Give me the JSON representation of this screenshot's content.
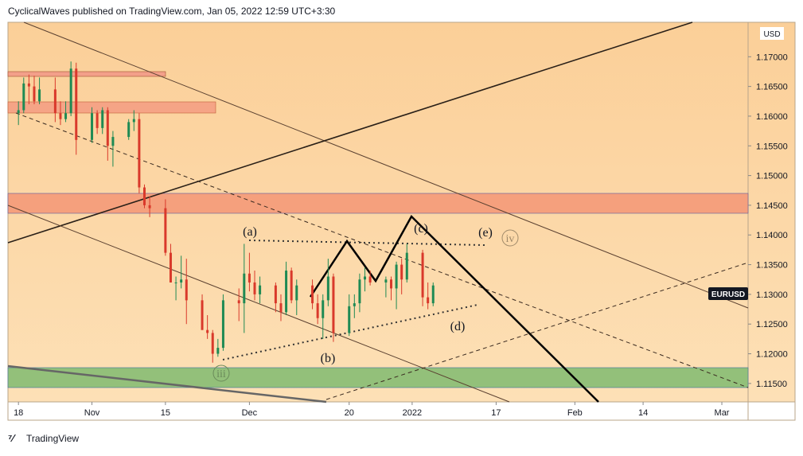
{
  "header": {
    "text": "CyclicalWaves published on TradingView.com, Jan 05, 2022 12:59 UTC+3:30"
  },
  "footer": {
    "brand": "TradingView"
  },
  "chart_data": {
    "type": "candlestick",
    "currency": "USD",
    "symbol": "EURUSD",
    "up_color": "#1e8a54",
    "down_color": "#d9392b",
    "xlim": [
      "2021-10-16",
      "2022-03-06"
    ],
    "ylim": [
      1.1119,
      1.1758
    ],
    "xticks": [
      {
        "value": "2021-10-18",
        "label": "18"
      },
      {
        "value": "2021-11-01",
        "label": "Nov"
      },
      {
        "value": "2021-11-15",
        "label": "15"
      },
      {
        "value": "2021-12-01",
        "label": "Dec"
      },
      {
        "value": "2021-12-20",
        "label": "20"
      },
      {
        "value": "2022-01-01",
        "label": "2022"
      },
      {
        "value": "2022-01-17",
        "label": "17"
      },
      {
        "value": "2022-02-01",
        "label": "Feb"
      },
      {
        "value": "2022-02-14",
        "label": "14"
      },
      {
        "value": "2022-03-01",
        "label": "Mar"
      }
    ],
    "yticks": [
      {
        "value": 1.115,
        "label": "1.11500"
      },
      {
        "value": 1.12,
        "label": "1.12000"
      },
      {
        "value": 1.125,
        "label": "1.12500"
      },
      {
        "value": 1.13,
        "label": "1.13000"
      },
      {
        "value": 1.135,
        "label": "1.13500"
      },
      {
        "value": 1.14,
        "label": "1.14000"
      },
      {
        "value": 1.145,
        "label": "1.14500"
      },
      {
        "value": 1.15,
        "label": "1.15000"
      },
      {
        "value": 1.155,
        "label": "1.15500"
      },
      {
        "value": 1.16,
        "label": "1.16000"
      },
      {
        "value": 1.165,
        "label": "1.16500"
      },
      {
        "value": 1.17,
        "label": "1.17000"
      }
    ],
    "x": [
      "2021-10-18",
      "2021-10-19",
      "2021-10-20",
      "2021-10-21",
      "2021-10-22",
      "2021-10-25",
      "2021-10-26",
      "2021-10-27",
      "2021-10-28",
      "2021-10-29",
      "2021-11-01",
      "2021-11-02",
      "2021-11-03",
      "2021-11-04",
      "2021-11-05",
      "2021-11-08",
      "2021-11-09",
      "2021-11-10",
      "2021-11-11",
      "2021-11-12",
      "2021-11-15",
      "2021-11-16",
      "2021-11-17",
      "2021-11-18",
      "2021-11-19",
      "2021-11-22",
      "2021-11-23",
      "2021-11-24",
      "2021-11-25",
      "2021-11-26",
      "2021-11-29",
      "2021-11-30",
      "2021-12-01",
      "2021-12-02",
      "2021-12-03",
      "2021-12-06",
      "2021-12-07",
      "2021-12-08",
      "2021-12-09",
      "2021-12-10",
      "2021-12-13",
      "2021-12-14",
      "2021-12-15",
      "2021-12-16",
      "2021-12-17",
      "2021-12-20",
      "2021-12-21",
      "2021-12-22",
      "2021-12-23",
      "2021-12-24",
      "2021-12-27",
      "2021-12-28",
      "2021-12-29",
      "2021-12-30",
      "2021-12-31",
      "2022-01-03",
      "2022-01-04",
      "2022-01-05"
    ],
    "open": [
      1.1605,
      1.161,
      1.1655,
      1.165,
      1.1625,
      1.1645,
      1.1605,
      1.1595,
      1.1605,
      1.168,
      1.156,
      1.1605,
      1.158,
      1.161,
      1.155,
      1.1565,
      1.159,
      1.1595,
      1.148,
      1.145,
      1.1445,
      1.137,
      1.132,
      1.132,
      1.1325,
      1.129,
      1.124,
      1.1235,
      1.12,
      1.121,
      1.129,
      1.1285,
      1.1335,
      1.132,
      1.13,
      1.1315,
      1.1285,
      1.127,
      1.134,
      1.129,
      1.1315,
      1.1285,
      1.126,
      1.129,
      1.133,
      1.1235,
      1.128,
      1.1285,
      1.1325,
      1.133,
      1.132,
      1.1325,
      1.131,
      1.135,
      1.1325,
      1.137,
      1.1295,
      1.1285
    ],
    "high": [
      1.1625,
      1.1665,
      1.167,
      1.1668,
      1.1665,
      1.1665,
      1.1625,
      1.1625,
      1.1692,
      1.169,
      1.1615,
      1.161,
      1.1615,
      1.1615,
      1.1575,
      1.1595,
      1.161,
      1.1605,
      1.1485,
      1.1465,
      1.146,
      1.1385,
      1.133,
      1.1365,
      1.136,
      1.13,
      1.1265,
      1.124,
      1.1225,
      1.13,
      1.131,
      1.1385,
      1.137,
      1.134,
      1.133,
      1.132,
      1.13,
      1.1355,
      1.1345,
      1.1325,
      1.1325,
      1.13,
      1.13,
      1.136,
      1.1335,
      1.13,
      1.13,
      1.1335,
      1.1345,
      1.134,
      1.133,
      1.133,
      1.1355,
      1.136,
      1.1385,
      1.1375,
      1.132,
      1.132
    ],
    "low": [
      1.1585,
      1.1605,
      1.162,
      1.162,
      1.162,
      1.159,
      1.1585,
      1.159,
      1.16,
      1.1535,
      1.1555,
      1.157,
      1.157,
      1.1525,
      1.1515,
      1.156,
      1.1575,
      1.147,
      1.1445,
      1.143,
      1.1365,
      1.132,
      1.129,
      1.131,
      1.125,
      1.124,
      1.1225,
      1.1185,
      1.1195,
      1.1205,
      1.1255,
      1.1235,
      1.1305,
      1.129,
      1.1285,
      1.127,
      1.1255,
      1.1265,
      1.1285,
      1.1265,
      1.1275,
      1.125,
      1.1225,
      1.128,
      1.122,
      1.123,
      1.126,
      1.127,
      1.1305,
      1.1315,
      1.1295,
      1.129,
      1.1275,
      1.13,
      1.132,
      1.128,
      1.1275,
      1.128
    ],
    "close": [
      1.161,
      1.1655,
      1.165,
      1.1625,
      1.1645,
      1.1605,
      1.1595,
      1.1605,
      1.168,
      1.156,
      1.1605,
      1.158,
      1.161,
      1.155,
      1.1565,
      1.159,
      1.1595,
      1.148,
      1.145,
      1.1445,
      1.137,
      1.132,
      1.132,
      1.1325,
      1.129,
      1.124,
      1.1235,
      1.12,
      1.121,
      1.129,
      1.1285,
      1.1335,
      1.132,
      1.13,
      1.1315,
      1.1285,
      1.127,
      1.134,
      1.129,
      1.1315,
      1.1285,
      1.126,
      1.129,
      1.133,
      1.1235,
      1.128,
      1.1285,
      1.1325,
      1.133,
      1.132,
      1.1325,
      1.131,
      1.135,
      1.1325,
      1.137,
      1.1295,
      1.1285,
      1.1315
    ],
    "annotations": [
      "(a)",
      "(b)",
      "(c)",
      "(d)",
      "(e)",
      "iv",
      "iii"
    ]
  }
}
